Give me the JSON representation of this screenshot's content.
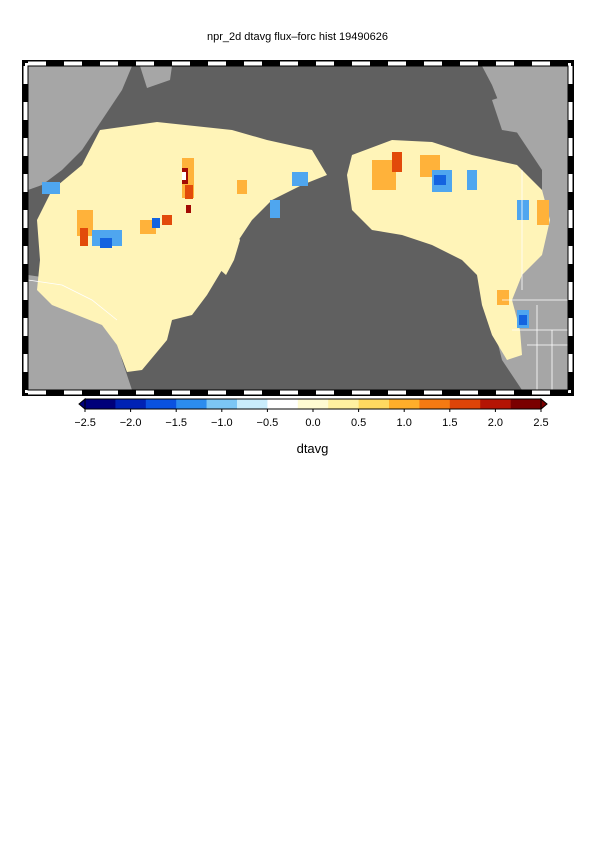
{
  "title": "npr_2d dtavg flux–forc hist 19490626",
  "colorbar": {
    "label": "dtavg",
    "ticks": [
      "−2.5",
      "−2.0",
      "−1.5",
      "−1.0",
      "−0.5",
      "0.0",
      "0.5",
      "1.0",
      "1.5",
      "2.0",
      "2.5"
    ],
    "range": [
      -2.5,
      2.5
    ],
    "colors": [
      "#00007a",
      "#0022b4",
      "#0a52e0",
      "#2b8cee",
      "#7cc6f4",
      "#c9ecfb",
      "#ffffff",
      "#fffbd2",
      "#fff0a0",
      "#ffd960",
      "#ffae2a",
      "#f57a12",
      "#dd4408",
      "#b41404",
      "#7a0000"
    ]
  },
  "map": {
    "projection": "North Pacific regional",
    "ocean_color": "#606060",
    "land_color": "#a6a6a6",
    "border_color": "#ffffff",
    "frame_style": "alternating black/white graticule bars"
  }
}
